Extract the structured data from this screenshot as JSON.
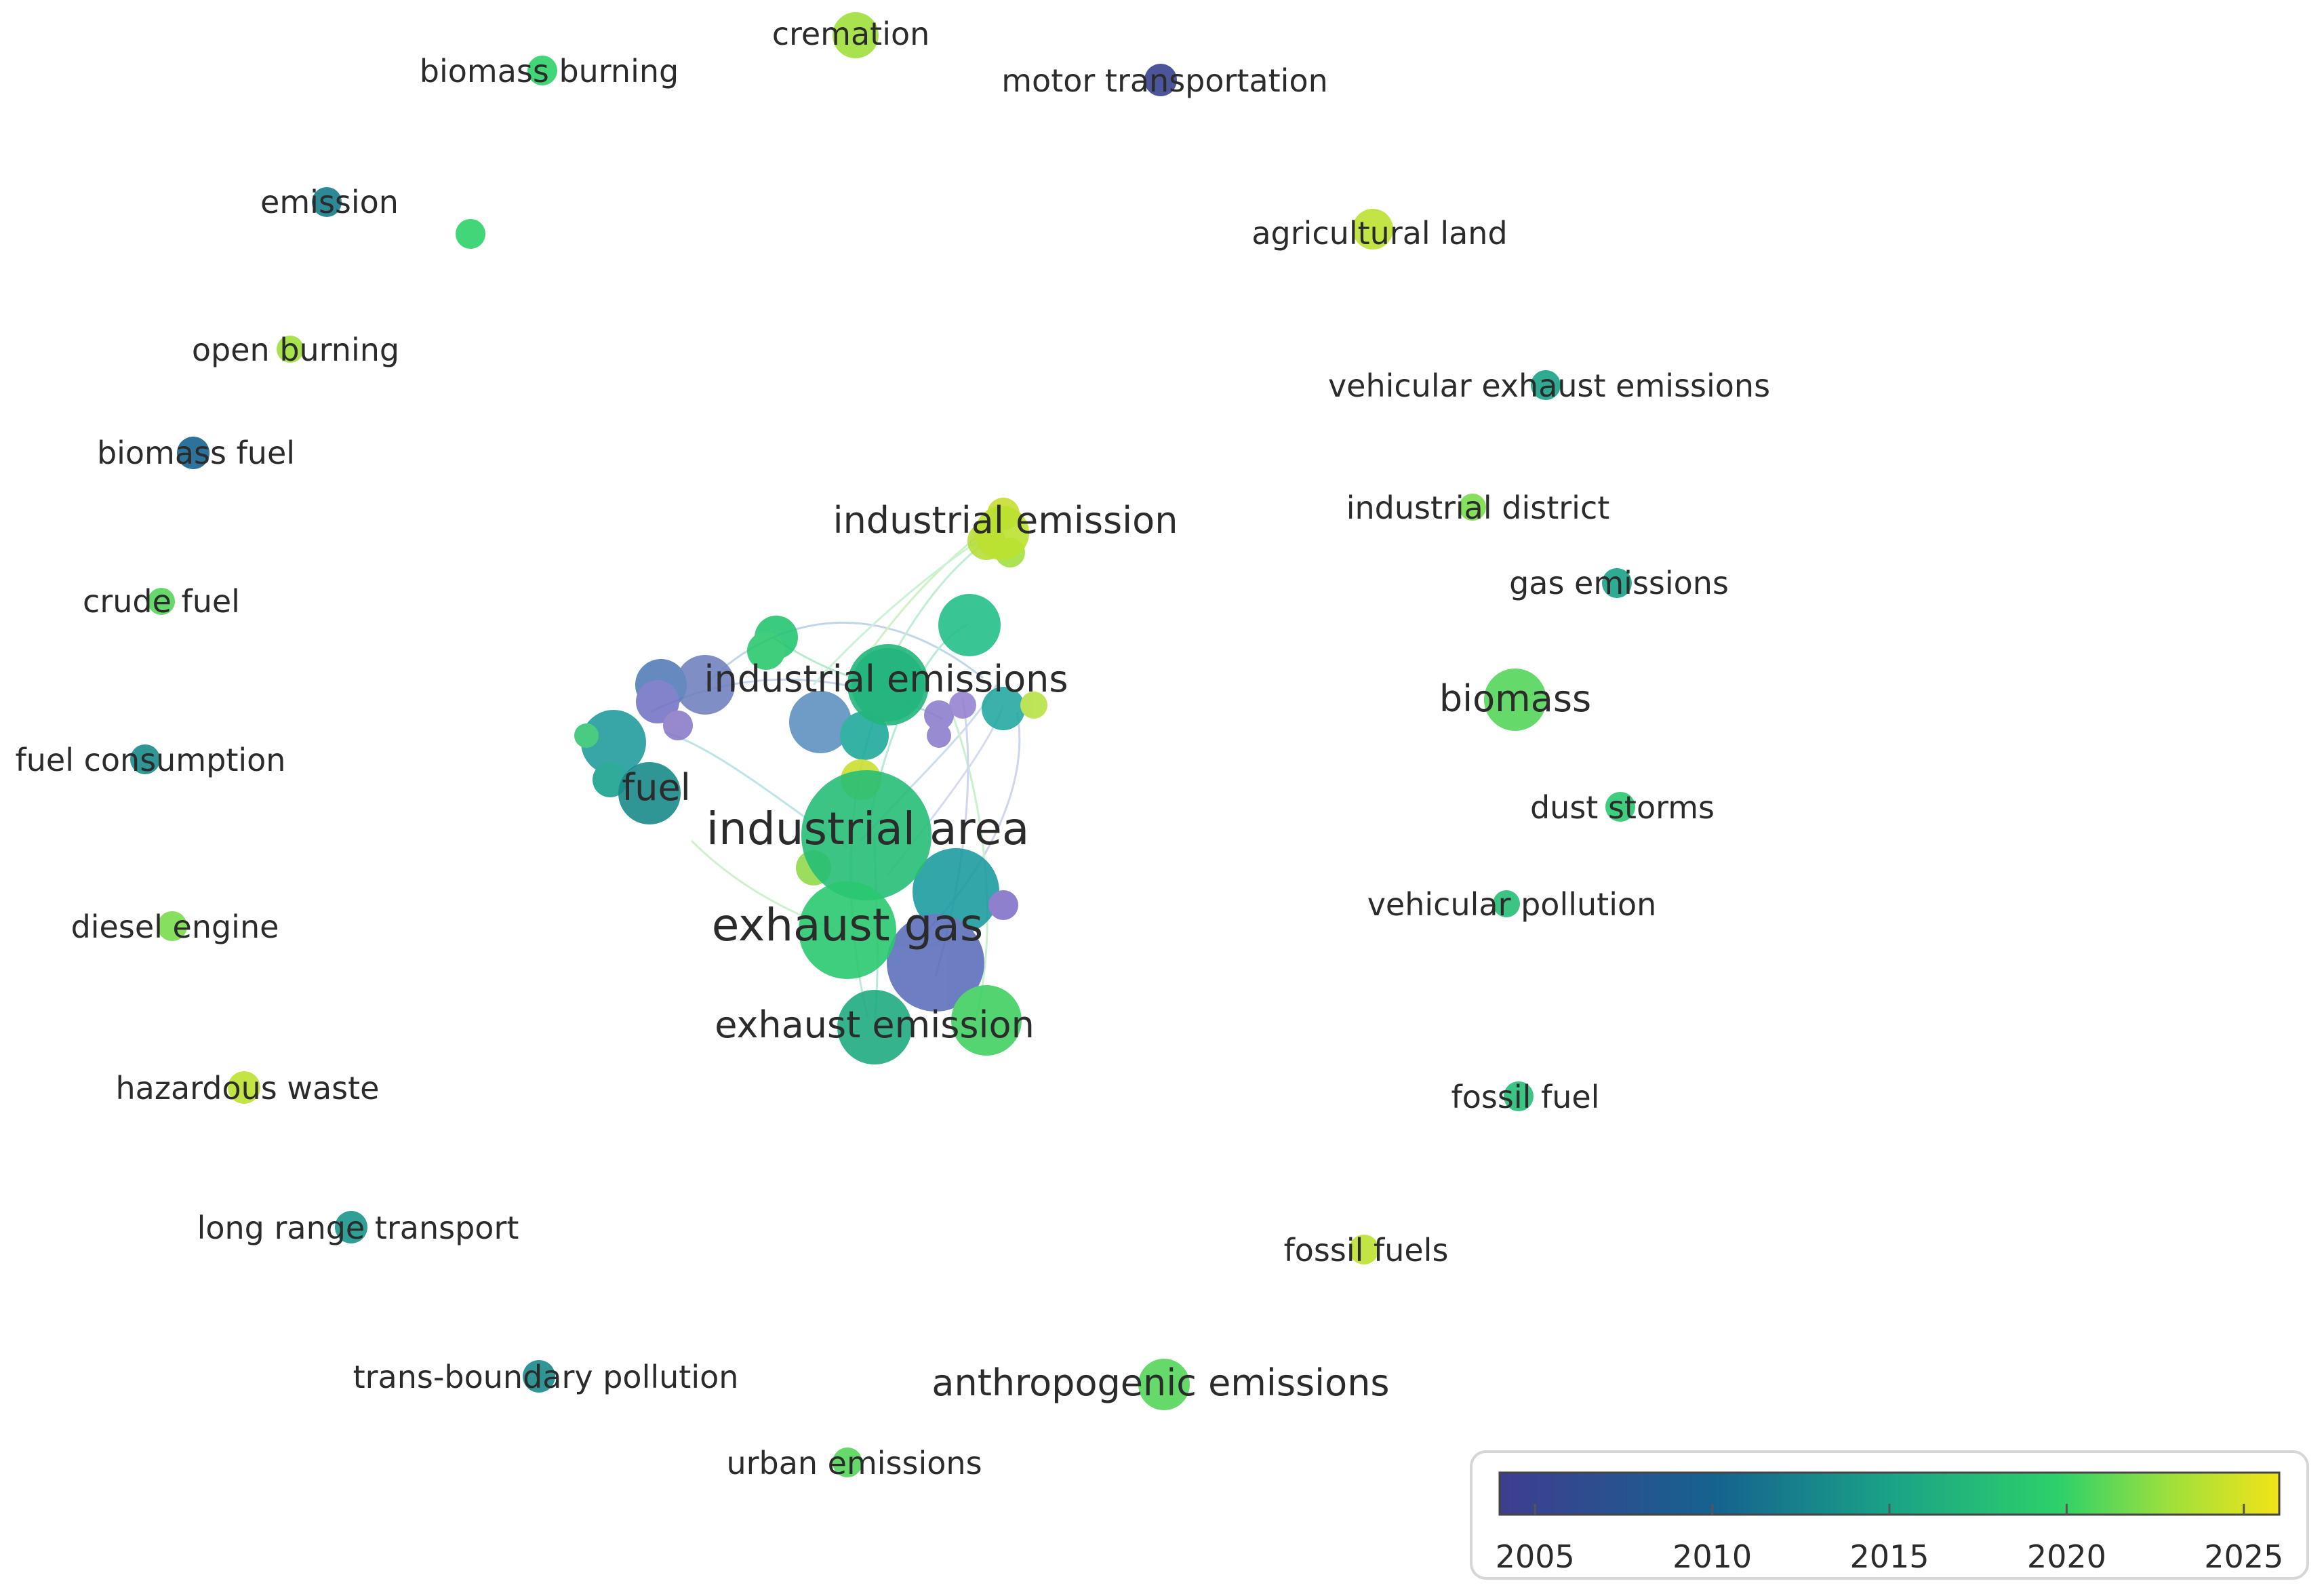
{
  "network": {
    "nodes": [
      {
        "label": "cremation",
        "year": 2023
      },
      {
        "label": "biomass burning",
        "year": 2020
      },
      {
        "label": "motor transportation",
        "year": 2005
      },
      {
        "label": "emission",
        "year": 2012
      },
      {
        "label": "",
        "year": 2020
      },
      {
        "label": "agricultural land",
        "year": 2024
      },
      {
        "label": "open burning",
        "year": 2023
      },
      {
        "label": "vehicular exhaust emissions",
        "year": 2015
      },
      {
        "label": "biomass fuel",
        "year": 2010
      },
      {
        "label": "industrial district",
        "year": 2022
      },
      {
        "label": "industrial emission",
        "year": 2024
      },
      {
        "label": "gas emissions",
        "year": 2015
      },
      {
        "label": "crude fuel",
        "year": 2021
      },
      {
        "label": "industrial emissions",
        "year": 2017
      },
      {
        "label": "biomass",
        "year": 2021
      },
      {
        "label": "fuel consumption",
        "year": 2013
      },
      {
        "label": "fuel",
        "year": 2013
      },
      {
        "label": "dust storms",
        "year": 2019
      },
      {
        "label": "industrial area",
        "year": 2018
      },
      {
        "label": "vehicular pollution",
        "year": 2018
      },
      {
        "label": "diesel engine",
        "year": 2022
      },
      {
        "label": "exhaust gas",
        "year": 2019
      },
      {
        "label": "exhaust emission",
        "year": 2016
      },
      {
        "label": "hazardous waste",
        "year": 2024
      },
      {
        "label": "fossil fuel",
        "year": 2018
      },
      {
        "label": "long range transport",
        "year": 2014
      },
      {
        "label": "fossil fuels",
        "year": 2024
      },
      {
        "label": "trans-boundary pollution",
        "year": 2013
      },
      {
        "label": "anthropogenic emissions",
        "year": 2021
      },
      {
        "label": "urban emissions",
        "year": 2021
      }
    ]
  },
  "legend": {
    "ticks": [
      "2005",
      "2010",
      "2015",
      "2020",
      "2025"
    ],
    "min_year": 2004,
    "max_year": 2026,
    "colors": [
      "#3f3d8f",
      "#2a6aa0",
      "#1d9a8e",
      "#2ec969",
      "#9fe03c",
      "#f2e318"
    ]
  }
}
